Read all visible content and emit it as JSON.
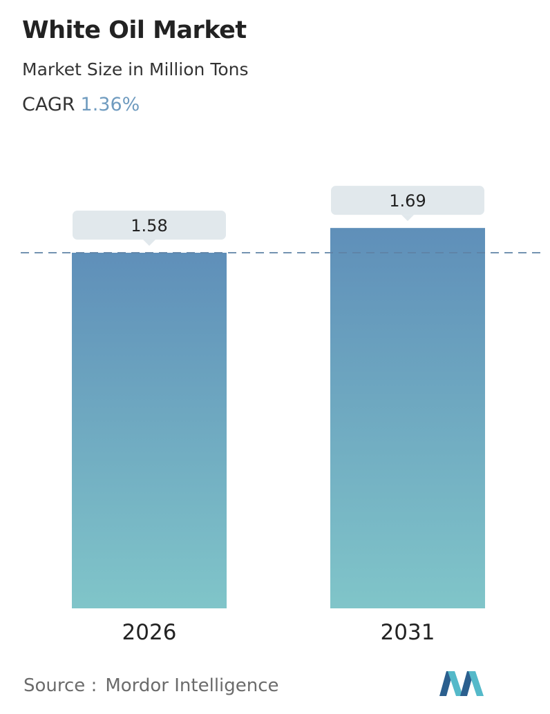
{
  "title": "White Oil Market",
  "subtitle": "Market Size in Million Tons",
  "cagr": {
    "label": "CAGR",
    "value": "1.36%"
  },
  "chart_data": {
    "type": "bar",
    "categories": [
      "2026",
      "2031"
    ],
    "values": [
      1.58,
      1.69
    ],
    "data_labels": [
      "1.58",
      "1.69"
    ],
    "reference_line": 1.58,
    "grid": false,
    "legend": "none"
  },
  "source": {
    "label": "Source :",
    "name": "Mordor Intelligence"
  },
  "colors": {
    "bar_top": "#5f8fb9",
    "bar_bottom": "#80c5c9",
    "label_box": "#e1e8ec",
    "dash_line": "#5f83a6",
    "cagr_value": "#6f9bbf",
    "logo_dark": "#2b5f8e",
    "logo_light": "#55b9c9"
  }
}
